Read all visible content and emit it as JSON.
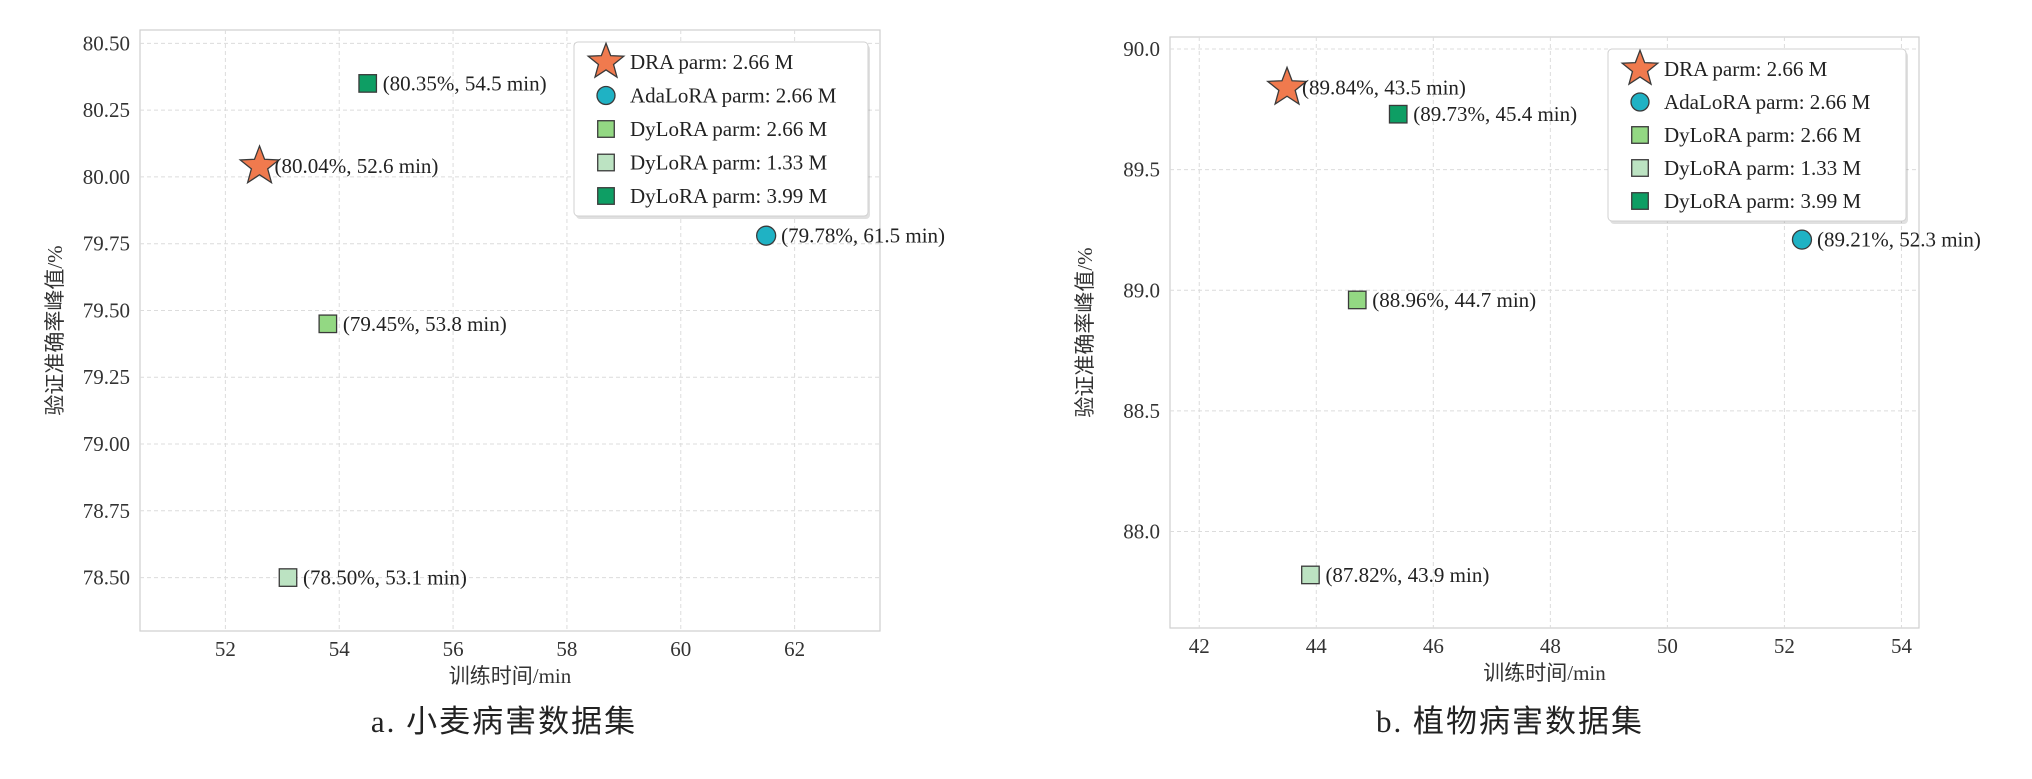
{
  "chart_data": [
    {
      "type": "scatter",
      "title": "",
      "caption": "a. 小麦病害数据集",
      "xlabel": "训练时间/min",
      "ylabel": "验证准确率峰值/%",
      "xlim": [
        50.5,
        63.5
      ],
      "ylim": [
        78.3,
        80.55
      ],
      "xticks": [
        "52",
        "54",
        "56",
        "58",
        "60",
        "62"
      ],
      "yticks": [
        "78.50",
        "78.75",
        "79.00",
        "79.25",
        "79.50",
        "79.75",
        "80.00",
        "80.25",
        "80.50"
      ],
      "grid": true,
      "legend_position": "top-right",
      "series": [
        {
          "name": "DRA parm: 2.66 M",
          "marker": "star",
          "color": "#F07A4E",
          "points": [
            {
              "x": 52.6,
              "y": 80.04,
              "label": "(80.04%, 52.6 min)"
            }
          ]
        },
        {
          "name": "AdaLoRA parm: 2.66 M",
          "marker": "circle",
          "color": "#1FB2C4",
          "points": [
            {
              "x": 61.5,
              "y": 79.78,
              "label": "(79.78%, 61.5 min)"
            }
          ]
        },
        {
          "name": "DyLoRA parm: 2.66 M",
          "marker": "square",
          "color": "#93D883",
          "points": [
            {
              "x": 53.8,
              "y": 79.45,
              "label": "(79.45%, 53.8 min)"
            }
          ]
        },
        {
          "name": "DyLoRA parm: 1.33 M",
          "marker": "square",
          "color": "#BCE3C2",
          "points": [
            {
              "x": 53.1,
              "y": 78.5,
              "label": "(78.50%, 53.1 min)"
            }
          ]
        },
        {
          "name": "DyLoRA parm: 3.99 M",
          "marker": "square",
          "color": "#0E9E64",
          "points": [
            {
              "x": 54.5,
              "y": 80.35,
              "label": "(80.35%, 54.5 min)"
            }
          ]
        }
      ]
    },
    {
      "type": "scatter",
      "title": "",
      "caption": "b. 植物病害数据集",
      "xlabel": "训练时间/min",
      "ylabel": "验证准确率峰值/%",
      "xlim": [
        41.5,
        54.3
      ],
      "ylim": [
        87.6,
        90.05
      ],
      "xticks": [
        "42",
        "44",
        "46",
        "48",
        "50",
        "52",
        "54"
      ],
      "yticks": [
        "88.0",
        "88.5",
        "89.0",
        "89.5",
        "90.0"
      ],
      "grid": true,
      "legend_position": "top-right",
      "series": [
        {
          "name": "DRA parm: 2.66 M",
          "marker": "star",
          "color": "#F07A4E",
          "points": [
            {
              "x": 43.5,
              "y": 89.84,
              "label": "(89.84%, 43.5 min)"
            }
          ]
        },
        {
          "name": "AdaLoRA parm: 2.66 M",
          "marker": "circle",
          "color": "#1FB2C4",
          "points": [
            {
              "x": 52.3,
              "y": 89.21,
              "label": "(89.21%, 52.3 min)"
            }
          ]
        },
        {
          "name": "DyLoRA parm: 2.66 M",
          "marker": "square",
          "color": "#93D883",
          "points": [
            {
              "x": 44.7,
              "y": 88.96,
              "label": "(88.96%, 44.7 min)"
            }
          ]
        },
        {
          "name": "DyLoRA parm: 1.33 M",
          "marker": "square",
          "color": "#BCE3C2",
          "points": [
            {
              "x": 43.9,
              "y": 87.82,
              "label": "(87.82%, 43.9 min)"
            }
          ]
        },
        {
          "name": "DyLoRA parm: 3.99 M",
          "marker": "square",
          "color": "#0E9E64",
          "points": [
            {
              "x": 45.4,
              "y": 89.73,
              "label": "(89.73%, 45.4 min)"
            }
          ]
        }
      ]
    }
  ]
}
